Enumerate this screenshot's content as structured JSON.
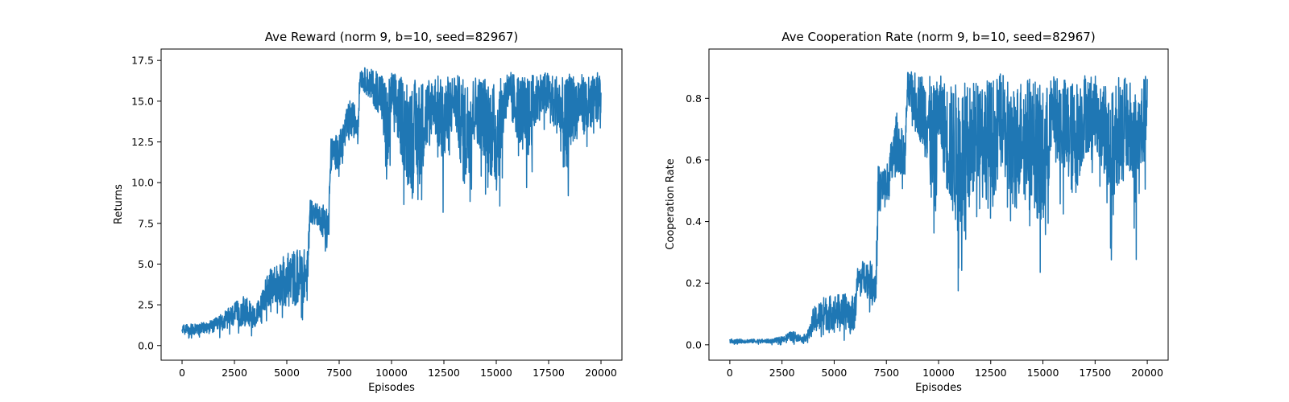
{
  "chart_data": [
    {
      "type": "line",
      "title": "Ave Reward (norm 9, b=10, seed=82967)",
      "xlabel": "Episodes",
      "ylabel": "Returns",
      "xlim": [
        -1000,
        21000
      ],
      "ylim": [
        -0.9,
        18.2
      ],
      "xticks": [
        0,
        2500,
        5000,
        7500,
        10000,
        12500,
        15000,
        17500,
        20000
      ],
      "xtick_labels": [
        "0",
        "2500",
        "5000",
        "7500",
        "10000",
        "12500",
        "15000",
        "17500",
        "20000"
      ],
      "yticks": [
        0.0,
        2.5,
        5.0,
        7.5,
        10.0,
        12.5,
        15.0,
        17.5
      ],
      "ytick_labels": [
        "0.0",
        "2.5",
        "5.0",
        "7.5",
        "10.0",
        "12.5",
        "15.0",
        "17.5"
      ],
      "grid": false,
      "color": "#1f77b4",
      "series": [
        {
          "x": [
            0,
            500,
            1000,
            1500,
            2000,
            2500,
            3000,
            3500,
            3800,
            4000,
            4500,
            5000,
            5500,
            6000,
            6100,
            6500,
            7000,
            7100,
            7500,
            8000,
            8400,
            8500,
            9000,
            9500,
            9800,
            10000,
            10500,
            11000,
            11500,
            12000,
            12500,
            13000,
            13500,
            14000,
            14500,
            15000,
            15500,
            16000,
            16500,
            17000,
            17500,
            18000,
            18300,
            18500,
            19000,
            19500,
            20000
          ],
          "y_low": [
            0.4,
            0.4,
            0.4,
            0.4,
            0.5,
            0.5,
            0.4,
            0.5,
            0.5,
            1.5,
            1.5,
            0.9,
            1.0,
            1.3,
            6.9,
            6.8,
            4.4,
            9.8,
            10.0,
            11.7,
            12.0,
            15.4,
            14.2,
            12.8,
            6.0,
            13.0,
            9.0,
            6.2,
            8.6,
            12.0,
            7.8,
            12.5,
            6.3,
            11.0,
            9.0,
            6.2,
            13.0,
            11.0,
            9.0,
            12.5,
            13.0,
            11.0,
            6.9,
            10.0,
            12.0,
            10.5,
            13.0
          ],
          "y_high": [
            1.5,
            1.4,
            1.5,
            1.7,
            2.2,
            2.8,
            3.3,
            2.6,
            3.5,
            4.6,
            5.4,
            6.1,
            6.4,
            6.3,
            9.3,
            8.8,
            9.3,
            13.0,
            13.3,
            15.4,
            14.9,
            17.3,
            17.2,
            17.3,
            17.0,
            17.2,
            17.1,
            17.2,
            17.0,
            17.1,
            17.2,
            17.1,
            17.2,
            17.1,
            17.2,
            16.9,
            17.2,
            17.2,
            17.1,
            17.2,
            17.1,
            17.2,
            17.0,
            17.3,
            17.1,
            17.0,
            17.2
          ]
        }
      ]
    },
    {
      "type": "line",
      "title": "Ave Cooperation Rate (norm 9, b=10, seed=82967)",
      "xlabel": "Episodes",
      "ylabel": "Cooperation Rate",
      "xlim": [
        -1000,
        21000
      ],
      "ylim": [
        -0.05,
        0.96
      ],
      "xticks": [
        0,
        2500,
        5000,
        7500,
        10000,
        12500,
        15000,
        17500,
        20000
      ],
      "xtick_labels": [
        "0",
        "2500",
        "5000",
        "7500",
        "10000",
        "12500",
        "15000",
        "17500",
        "20000"
      ],
      "yticks": [
        0.0,
        0.2,
        0.4,
        0.6,
        0.8
      ],
      "ytick_labels": [
        "0.0",
        "0.2",
        "0.4",
        "0.6",
        "0.8"
      ],
      "grid": false,
      "color": "#1f77b4",
      "series": [
        {
          "x": [
            0,
            500,
            1000,
            1500,
            2000,
            2500,
            3000,
            3500,
            3800,
            4000,
            4500,
            5000,
            5500,
            6000,
            6100,
            6500,
            7000,
            7100,
            7500,
            8000,
            8400,
            8500,
            9000,
            9500,
            9800,
            10000,
            10500,
            11000,
            11500,
            12000,
            12500,
            13000,
            13500,
            14000,
            14500,
            15000,
            15500,
            16000,
            16500,
            17000,
            17500,
            18000,
            18300,
            18500,
            19000,
            19500,
            20000
          ],
          "y_low": [
            0.0,
            0.0,
            0.0,
            0.0,
            0.0,
            0.0,
            0.0,
            0.0,
            0.0,
            0.0,
            0.0,
            0.0,
            0.0,
            0.0,
            0.13,
            0.12,
            0.07,
            0.37,
            0.38,
            0.48,
            0.5,
            0.72,
            0.6,
            0.45,
            0.1,
            0.55,
            0.3,
            0.12,
            0.25,
            0.45,
            0.2,
            0.55,
            0.14,
            0.4,
            0.3,
            0.12,
            0.55,
            0.4,
            0.3,
            0.5,
            0.55,
            0.4,
            0.14,
            0.35,
            0.45,
            0.26,
            0.55
          ],
          "y_high": [
            0.02,
            0.02,
            0.02,
            0.02,
            0.02,
            0.03,
            0.05,
            0.03,
            0.06,
            0.13,
            0.17,
            0.18,
            0.18,
            0.17,
            0.26,
            0.3,
            0.27,
            0.6,
            0.6,
            0.78,
            0.68,
            0.9,
            0.91,
            0.92,
            0.9,
            0.91,
            0.89,
            0.92,
            0.9,
            0.91,
            0.92,
            0.91,
            0.9,
            0.91,
            0.92,
            0.89,
            0.9,
            0.91,
            0.9,
            0.92,
            0.9,
            0.91,
            0.88,
            0.92,
            0.9,
            0.89,
            0.91
          ]
        }
      ]
    }
  ]
}
